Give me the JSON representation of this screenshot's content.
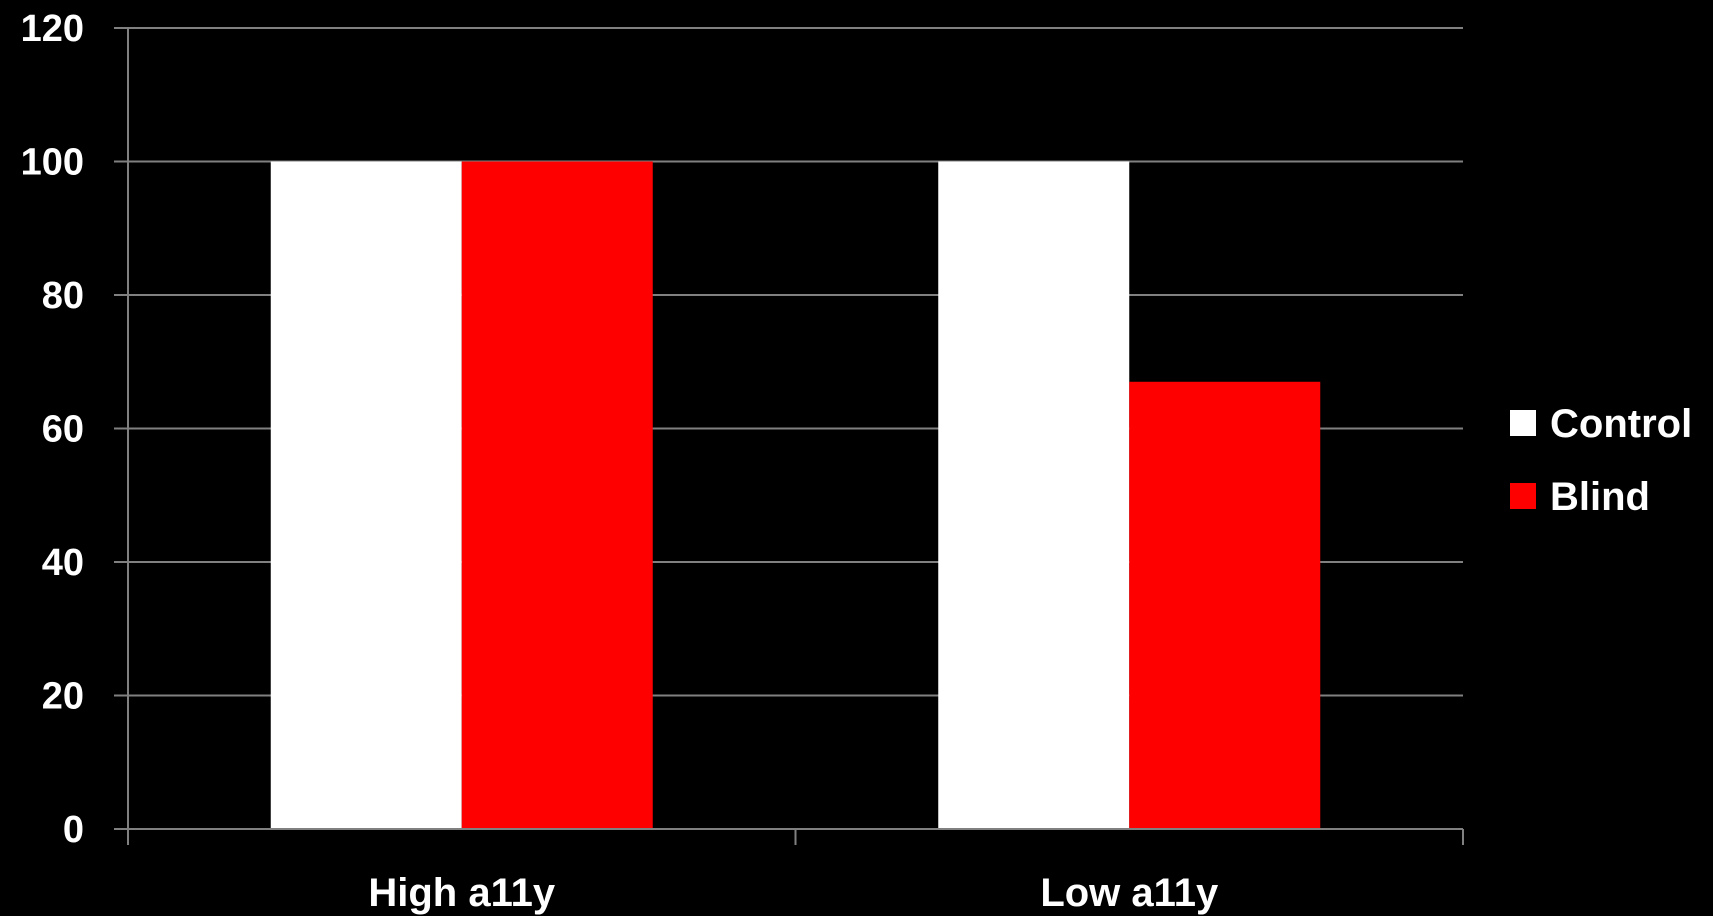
{
  "chart_data": {
    "type": "bar",
    "title": "",
    "xlabel": "",
    "ylabel": "",
    "categories": [
      "High a11y",
      "Low a11y"
    ],
    "series": [
      {
        "name": "Control",
        "values": [
          100,
          100
        ],
        "color": "#ffffff"
      },
      {
        "name": "Blind",
        "values": [
          100,
          67
        ],
        "color": "#ff0000"
      }
    ],
    "ylim": [
      0,
      120
    ],
    "yticks": [
      0,
      20,
      40,
      60,
      80,
      100,
      120
    ],
    "grid": true,
    "legend_position": "right",
    "background": "#000000",
    "axis_color": "#808080"
  }
}
